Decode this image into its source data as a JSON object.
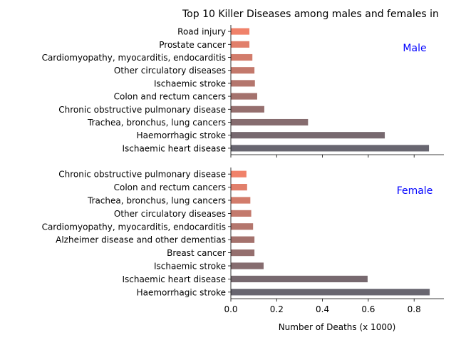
{
  "chart_data": {
    "type": "bar",
    "orientation": "horizontal",
    "title": "Top 10 Killer Diseases among males and females in",
    "xlabel": "Number of Deaths (x 1000)",
    "xlim": [
      0,
      0.93
    ],
    "xticks": [
      "0.0",
      "0.2",
      "0.4",
      "0.6",
      "0.8"
    ],
    "xtick_values": [
      0.0,
      0.2,
      0.4,
      0.6,
      0.8
    ],
    "grid": false,
    "colors": {
      "top": "#f0826a",
      "bottom": "#686670",
      "annotation": "#0000ff"
    },
    "panels": [
      {
        "label": "Male",
        "categories": [
          "Road injury",
          "Prostate cancer",
          "Cardiomyopathy, myocarditis, endocarditis",
          "Other circulatory diseases",
          "Ischaemic stroke",
          "Colon and rectum cancers",
          "Chronic obstructive pulmonary disease",
          "Trachea, bronchus, lung cancers",
          "Haemorrhagic stroke",
          "Ischaemic heart disease"
        ],
        "values": [
          0.081,
          0.081,
          0.094,
          0.103,
          0.105,
          0.115,
          0.146,
          0.337,
          0.672,
          0.865
        ],
        "show_tick_labels": false
      },
      {
        "label": "Female",
        "categories": [
          "Chronic obstructive pulmonary disease",
          "Colon and rectum cancers",
          "Trachea, bronchus, lung cancers",
          "Other circulatory diseases",
          "Cardiomyopathy, myocarditis, endocarditis",
          "Alzheimer disease and other dementias",
          "Breast cancer",
          "Ischaemic stroke",
          "Ischaemic heart disease",
          "Haemorrhagic stroke"
        ],
        "values": [
          0.068,
          0.071,
          0.085,
          0.089,
          0.097,
          0.103,
          0.103,
          0.143,
          0.597,
          0.868
        ],
        "show_tick_labels": true
      }
    ]
  }
}
